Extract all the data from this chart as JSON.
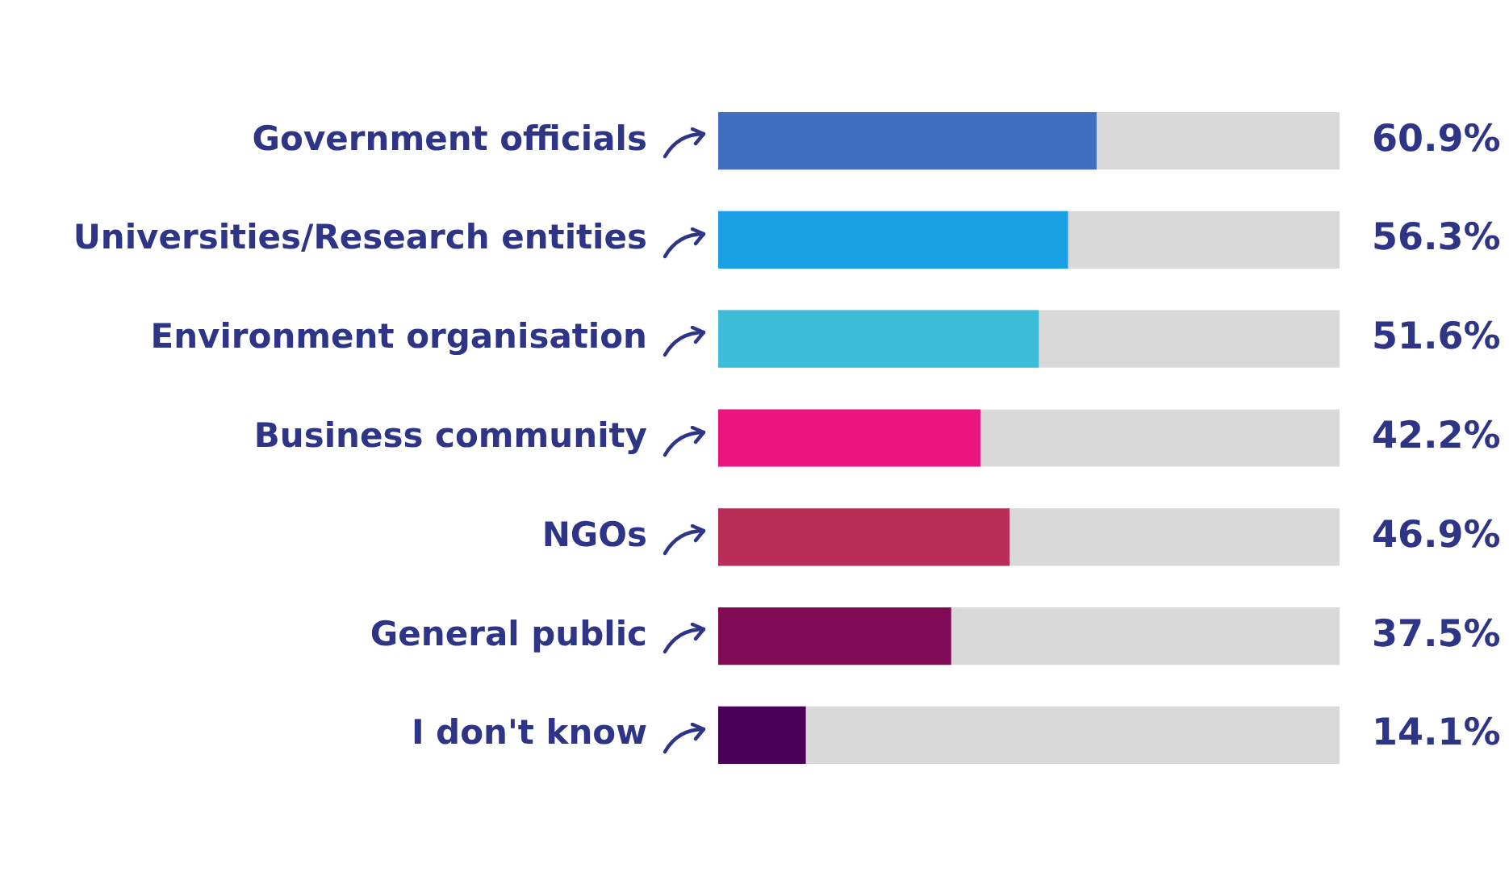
{
  "chart_data": {
    "type": "bar",
    "orientation": "horizontal",
    "categories": [
      "Government officials",
      "Universities/Research entities",
      "Environment organisation",
      "Business community",
      "NGOs",
      "General public",
      "I don't know"
    ],
    "values": [
      60.9,
      56.3,
      51.6,
      42.2,
      46.9,
      37.5,
      14.1
    ],
    "colors": [
      "#416fbf",
      "#1aa0e4",
      "#3dbcd8",
      "#ec1580",
      "#b72e58",
      "#810a57",
      "#4b0058"
    ],
    "value_labels": [
      "60.9%",
      "56.3%",
      "51.6%",
      "42.2%",
      "46.9%",
      "37.5%",
      "14.1%"
    ],
    "xlim": [
      0,
      100
    ],
    "tick_labels": "y",
    "grid": false,
    "legend": false
  }
}
